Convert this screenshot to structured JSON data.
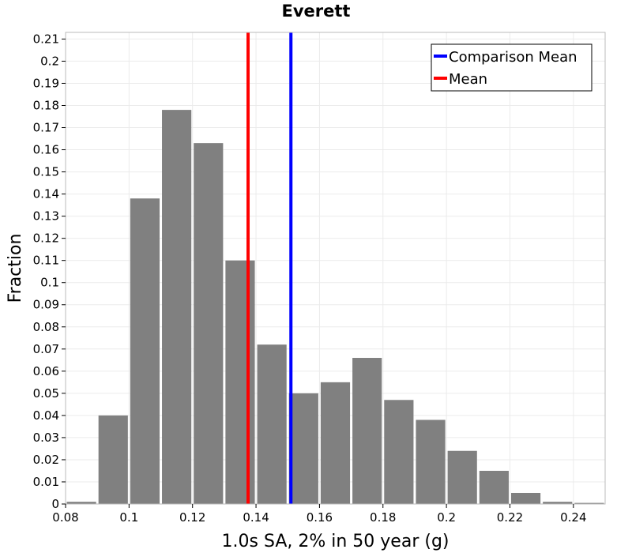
{
  "chart_data": {
    "type": "bar",
    "title": "Everett",
    "xlabel": "1.0s SA, 2% in 50 year (g)",
    "ylabel": "Fraction",
    "xlim": [
      0.08,
      0.25
    ],
    "ylim": [
      0,
      0.213
    ],
    "xticks": [
      0.08,
      0.1,
      0.12,
      0.14,
      0.16,
      0.18,
      0.2,
      0.22,
      0.24
    ],
    "xtick_labels": [
      "0.08",
      "0.1",
      "0.12",
      "0.14",
      "0.16",
      "0.18",
      "0.2",
      "0.22",
      "0.24"
    ],
    "yticks": [
      0,
      0.01,
      0.02,
      0.03,
      0.04,
      0.05,
      0.06,
      0.07,
      0.08,
      0.09,
      0.1,
      0.11,
      0.12,
      0.13,
      0.14,
      0.15,
      0.16,
      0.17,
      0.18,
      0.19,
      0.2,
      0.21
    ],
    "ytick_labels": [
      "0",
      "0.01",
      "0.02",
      "0.03",
      "0.04",
      "0.05",
      "0.06",
      "0.07",
      "0.08",
      "0.09",
      "0.1",
      "0.11",
      "0.12",
      "0.13",
      "0.14",
      "0.15",
      "0.16",
      "0.17",
      "0.18",
      "0.19",
      "0.2",
      "0.21"
    ],
    "grid": true,
    "bin_width": 0.01,
    "bins": [
      {
        "x": 0.085,
        "value": 0.001
      },
      {
        "x": 0.095,
        "value": 0.04
      },
      {
        "x": 0.105,
        "value": 0.138
      },
      {
        "x": 0.115,
        "value": 0.178
      },
      {
        "x": 0.125,
        "value": 0.163
      },
      {
        "x": 0.135,
        "value": 0.11
      },
      {
        "x": 0.145,
        "value": 0.072
      },
      {
        "x": 0.155,
        "value": 0.05
      },
      {
        "x": 0.165,
        "value": 0.055
      },
      {
        "x": 0.175,
        "value": 0.066
      },
      {
        "x": 0.185,
        "value": 0.047
      },
      {
        "x": 0.195,
        "value": 0.038
      },
      {
        "x": 0.205,
        "value": 0.024
      },
      {
        "x": 0.215,
        "value": 0.015
      },
      {
        "x": 0.225,
        "value": 0.005
      },
      {
        "x": 0.235,
        "value": 0.001
      },
      {
        "x": 0.245,
        "value": 0.0005
      }
    ],
    "bar_color": "#808080",
    "lines": [
      {
        "name": "Comparison Mean",
        "x": 0.151,
        "color": "#0000ff"
      },
      {
        "name": "Mean",
        "x": 0.1375,
        "color": "#ff0000"
      }
    ],
    "legend": {
      "position": "top-right"
    }
  }
}
